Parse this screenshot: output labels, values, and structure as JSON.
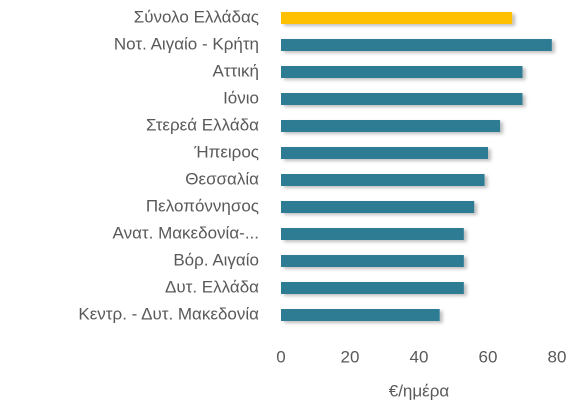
{
  "chart_data": {
    "type": "hbar",
    "categories": [
      "Σύνολο Ελλάδας",
      "Νοτ. Αιγαίο - Κρήτη",
      "Αττική",
      "Ιόνιο",
      "Στερεά Ελλάδα",
      "Ήπειρος",
      "Θεσσαλία",
      "Πελοπόννησος",
      "Ανατ. Μακεδονία-...",
      "Βόρ. Αιγαίο",
      "Δυτ. Ελλάδα",
      "Κεντρ. - Δυτ. Μακεδονία"
    ],
    "values": [
      67,
      78.5,
      70,
      70,
      63.5,
      60,
      59,
      56,
      53,
      53,
      53,
      46
    ],
    "colors": [
      "#ffc000",
      "#2e7b94",
      "#2e7b94",
      "#2e7b94",
      "#2e7b94",
      "#2e7b94",
      "#2e7b94",
      "#2e7b94",
      "#2e7b94",
      "#2e7b94",
      "#2e7b94",
      "#2e7b94"
    ],
    "xlim": [
      0,
      80
    ],
    "xticks": [
      0,
      20,
      40,
      60,
      80
    ],
    "x_label": "€/ημέρα",
    "grid": false
  }
}
